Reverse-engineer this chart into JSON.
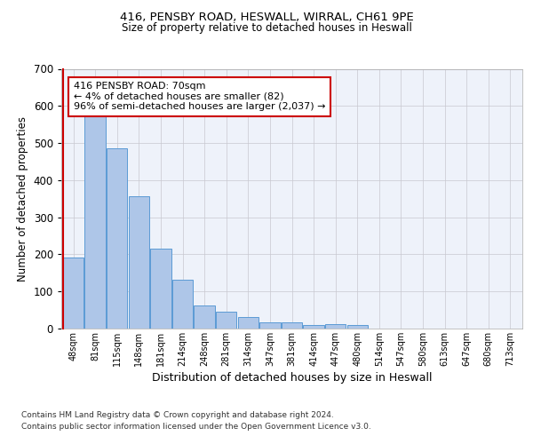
{
  "title1": "416, PENSBY ROAD, HESWALL, WIRRAL, CH61 9PE",
  "title2": "Size of property relative to detached houses in Heswall",
  "xlabel": "Distribution of detached houses by size in Heswall",
  "ylabel": "Number of detached properties",
  "categories": [
    "48sqm",
    "81sqm",
    "115sqm",
    "148sqm",
    "181sqm",
    "214sqm",
    "248sqm",
    "281sqm",
    "314sqm",
    "347sqm",
    "381sqm",
    "414sqm",
    "447sqm",
    "480sqm",
    "514sqm",
    "547sqm",
    "580sqm",
    "613sqm",
    "647sqm",
    "680sqm",
    "713sqm"
  ],
  "values": [
    192,
    583,
    485,
    357,
    216,
    132,
    63,
    45,
    32,
    16,
    16,
    9,
    11,
    10,
    0,
    0,
    0,
    0,
    0,
    0,
    0
  ],
  "bar_color": "#aec6e8",
  "bar_edge_color": "#5b9bd5",
  "annotation_line1": "416 PENSBY ROAD: 70sqm",
  "annotation_line2": "← 4% of detached houses are smaller (82)",
  "annotation_line3": "96% of semi-detached houses are larger (2,037) →",
  "annotation_border_color": "#cc0000",
  "vline_color": "#cc0000",
  "background_color": "#eef2fa",
  "grid_color": "#c8c8d0",
  "footnote1": "Contains HM Land Registry data © Crown copyright and database right 2024.",
  "footnote2": "Contains public sector information licensed under the Open Government Licence v3.0.",
  "ylim": [
    0,
    700
  ],
  "yticks": [
    0,
    100,
    200,
    300,
    400,
    500,
    600,
    700
  ]
}
